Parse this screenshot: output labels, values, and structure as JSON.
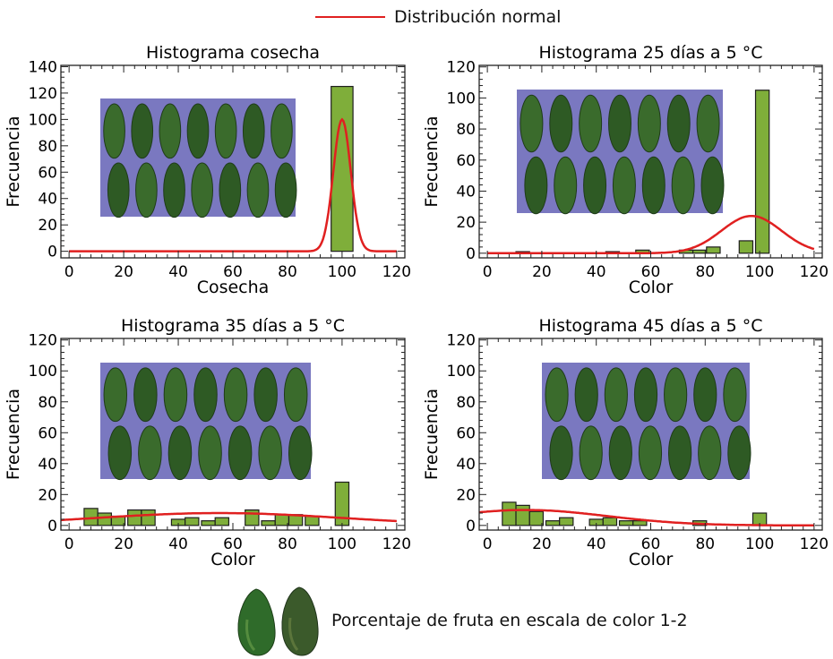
{
  "legend": {
    "line_label": "Distribución normal",
    "line_color": "#e02020"
  },
  "bottom_legend": {
    "label": "Porcentaje de fruta en escala de color 1-2",
    "icons": [
      "avocado-icon",
      "avocado-icon"
    ]
  },
  "colors": {
    "bar_fill": "#7fae3a",
    "bar_stroke": "#1e1e1e",
    "curve": "#e02020",
    "photo_background": "#7a78c0"
  },
  "chart_data": [
    {
      "type": "bar",
      "title": "Histograma cosecha",
      "xlabel": "Cosecha",
      "ylabel": "Frecuencia",
      "xlim": [
        -3,
        123
      ],
      "ylim": [
        -5,
        141
      ],
      "xticks": [
        0,
        20,
        40,
        60,
        80,
        100,
        120
      ],
      "yticks": [
        0,
        20,
        40,
        60,
        80,
        100,
        120,
        140
      ],
      "bin_width": 8,
      "bars": [
        {
          "x": 100,
          "value": 125
        }
      ],
      "normal_curve": {
        "mean": 100,
        "sd": 3.2,
        "peak": 100,
        "xrange": [
          0,
          120
        ]
      },
      "photo": "fruit-tray-photo"
    },
    {
      "type": "bar",
      "title": "Histograma 25 días a 5 °C",
      "xlabel": "Color",
      "ylabel": "Frecuencia",
      "xlim": [
        -3,
        123
      ],
      "ylim": [
        -3,
        121
      ],
      "xticks": [
        0,
        20,
        40,
        60,
        80,
        100,
        120
      ],
      "yticks": [
        0,
        20,
        40,
        60,
        80,
        100,
        120
      ],
      "bin_width": 5,
      "bars": [
        {
          "x": 13,
          "value": 1
        },
        {
          "x": 46,
          "value": 1
        },
        {
          "x": 57,
          "value": 2
        },
        {
          "x": 73,
          "value": 2
        },
        {
          "x": 78,
          "value": 2
        },
        {
          "x": 83,
          "value": 4
        },
        {
          "x": 95,
          "value": 8
        },
        {
          "x": 101,
          "value": 105
        }
      ],
      "normal_curve": {
        "mean": 97,
        "sd": 11,
        "peak": 24,
        "xrange": [
          0,
          120
        ]
      },
      "photo": "fruit-tray-photo"
    },
    {
      "type": "bar",
      "title": "Histograma 35 días a 5 °C",
      "xlabel": "Color",
      "ylabel": "Frecuencia",
      "xlim": [
        -3,
        123
      ],
      "ylim": [
        -3,
        121
      ],
      "xticks": [
        0,
        20,
        40,
        60,
        80,
        100,
        120
      ],
      "yticks": [
        0,
        20,
        40,
        60,
        80,
        100,
        120
      ],
      "bin_width": 5,
      "bars": [
        {
          "x": 8,
          "value": 11
        },
        {
          "x": 13,
          "value": 8
        },
        {
          "x": 18,
          "value": 6
        },
        {
          "x": 24,
          "value": 10
        },
        {
          "x": 29,
          "value": 10
        },
        {
          "x": 40,
          "value": 4
        },
        {
          "x": 45,
          "value": 5
        },
        {
          "x": 51,
          "value": 3
        },
        {
          "x": 56,
          "value": 5
        },
        {
          "x": 67,
          "value": 10
        },
        {
          "x": 73,
          "value": 3
        },
        {
          "x": 78,
          "value": 7
        },
        {
          "x": 83,
          "value": 7
        },
        {
          "x": 89,
          "value": 6
        },
        {
          "x": 100,
          "value": 28
        }
      ],
      "normal_curve": {
        "mean": 55,
        "sd": 45,
        "peak": 8,
        "xrange": [
          -3,
          120
        ]
      },
      "photo": "fruit-tray-photo"
    },
    {
      "type": "bar",
      "title": "Histograma 45 días a 5 °C",
      "xlabel": "Color",
      "ylabel": "Frecuencia",
      "xlim": [
        -3,
        123
      ],
      "ylim": [
        -3,
        121
      ],
      "xticks": [
        0,
        20,
        40,
        60,
        80,
        100,
        120
      ],
      "yticks": [
        0,
        20,
        40,
        60,
        80,
        100,
        120
      ],
      "bin_width": 5,
      "bars": [
        {
          "x": 8,
          "value": 15
        },
        {
          "x": 13,
          "value": 13
        },
        {
          "x": 18,
          "value": 9
        },
        {
          "x": 24,
          "value": 3
        },
        {
          "x": 29,
          "value": 5
        },
        {
          "x": 40,
          "value": 4
        },
        {
          "x": 45,
          "value": 5
        },
        {
          "x": 51,
          "value": 3
        },
        {
          "x": 56,
          "value": 3
        },
        {
          "x": 78,
          "value": 3
        },
        {
          "x": 100,
          "value": 8
        }
      ],
      "normal_curve": {
        "mean": 14,
        "sd": 30,
        "peak": 10,
        "xrange": [
          -3,
          120
        ]
      },
      "photo": "fruit-tray-photo"
    }
  ]
}
